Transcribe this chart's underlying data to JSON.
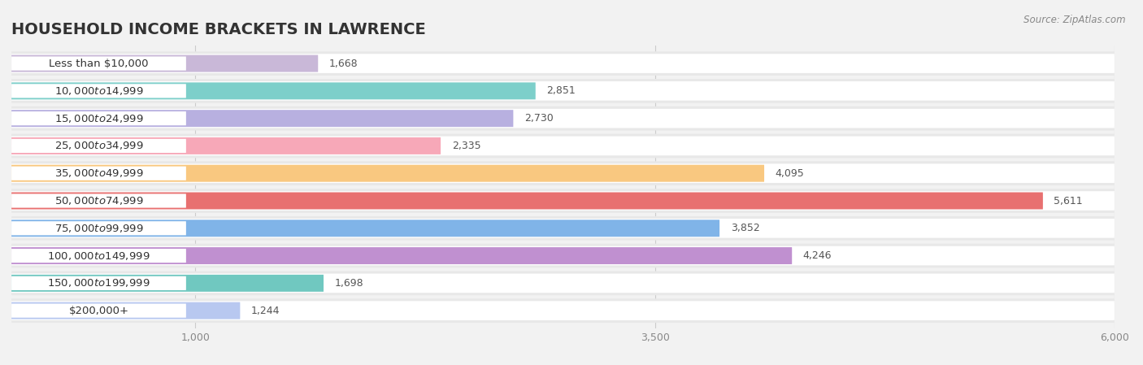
{
  "title": "HOUSEHOLD INCOME BRACKETS IN LAWRENCE",
  "source": "Source: ZipAtlas.com",
  "categories": [
    "Less than $10,000",
    "$10,000 to $14,999",
    "$15,000 to $24,999",
    "$25,000 to $34,999",
    "$35,000 to $49,999",
    "$50,000 to $74,999",
    "$75,000 to $99,999",
    "$100,000 to $149,999",
    "$150,000 to $199,999",
    "$200,000+"
  ],
  "values": [
    1668,
    2851,
    2730,
    2335,
    4095,
    5611,
    3852,
    4246,
    1698,
    1244
  ],
  "bar_colors": [
    "#c9b8d8",
    "#7dcfca",
    "#b8b0e0",
    "#f7a8b8",
    "#f9c880",
    "#e87070",
    "#80b4e8",
    "#c090d0",
    "#70c8c0",
    "#b8c8f0"
  ],
  "background_color": "#f2f2f2",
  "xlim": [
    0,
    6000
  ],
  "xticks": [
    1000,
    3500,
    6000
  ],
  "title_fontsize": 14,
  "label_fontsize": 9.5,
  "value_fontsize": 9
}
